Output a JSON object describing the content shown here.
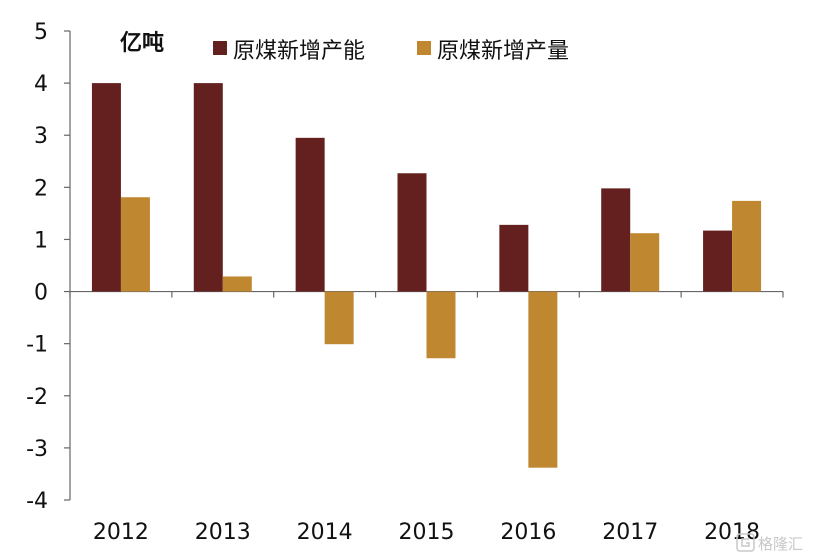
{
  "chart_data": {
    "type": "bar",
    "unit_label": "亿吨",
    "categories": [
      "2012",
      "2013",
      "2014",
      "2015",
      "2016",
      "2017",
      "2018"
    ],
    "series": [
      {
        "name": "原煤新增产能",
        "color": "#63201f",
        "values": [
          4.0,
          4.0,
          2.95,
          2.27,
          1.28,
          1.98,
          1.17
        ]
      },
      {
        "name": "原煤新增产量",
        "color": "#c08731",
        "values": [
          1.81,
          0.29,
          -1.01,
          -1.28,
          -3.38,
          1.12,
          1.74
        ]
      }
    ],
    "ylim": [
      -4,
      5
    ],
    "yticks": [
      5,
      4,
      3,
      2,
      1,
      0,
      -1,
      -2,
      -3,
      -4
    ],
    "ytick_labels": [
      "5",
      "4",
      "3",
      "2",
      "1",
      "0",
      "-1",
      "-2",
      "-3",
      "-4"
    ],
    "legend_position": "top",
    "grid": false
  },
  "watermark": {
    "text": "格隆汇",
    "icon": "gelonghui-logo-icon"
  }
}
